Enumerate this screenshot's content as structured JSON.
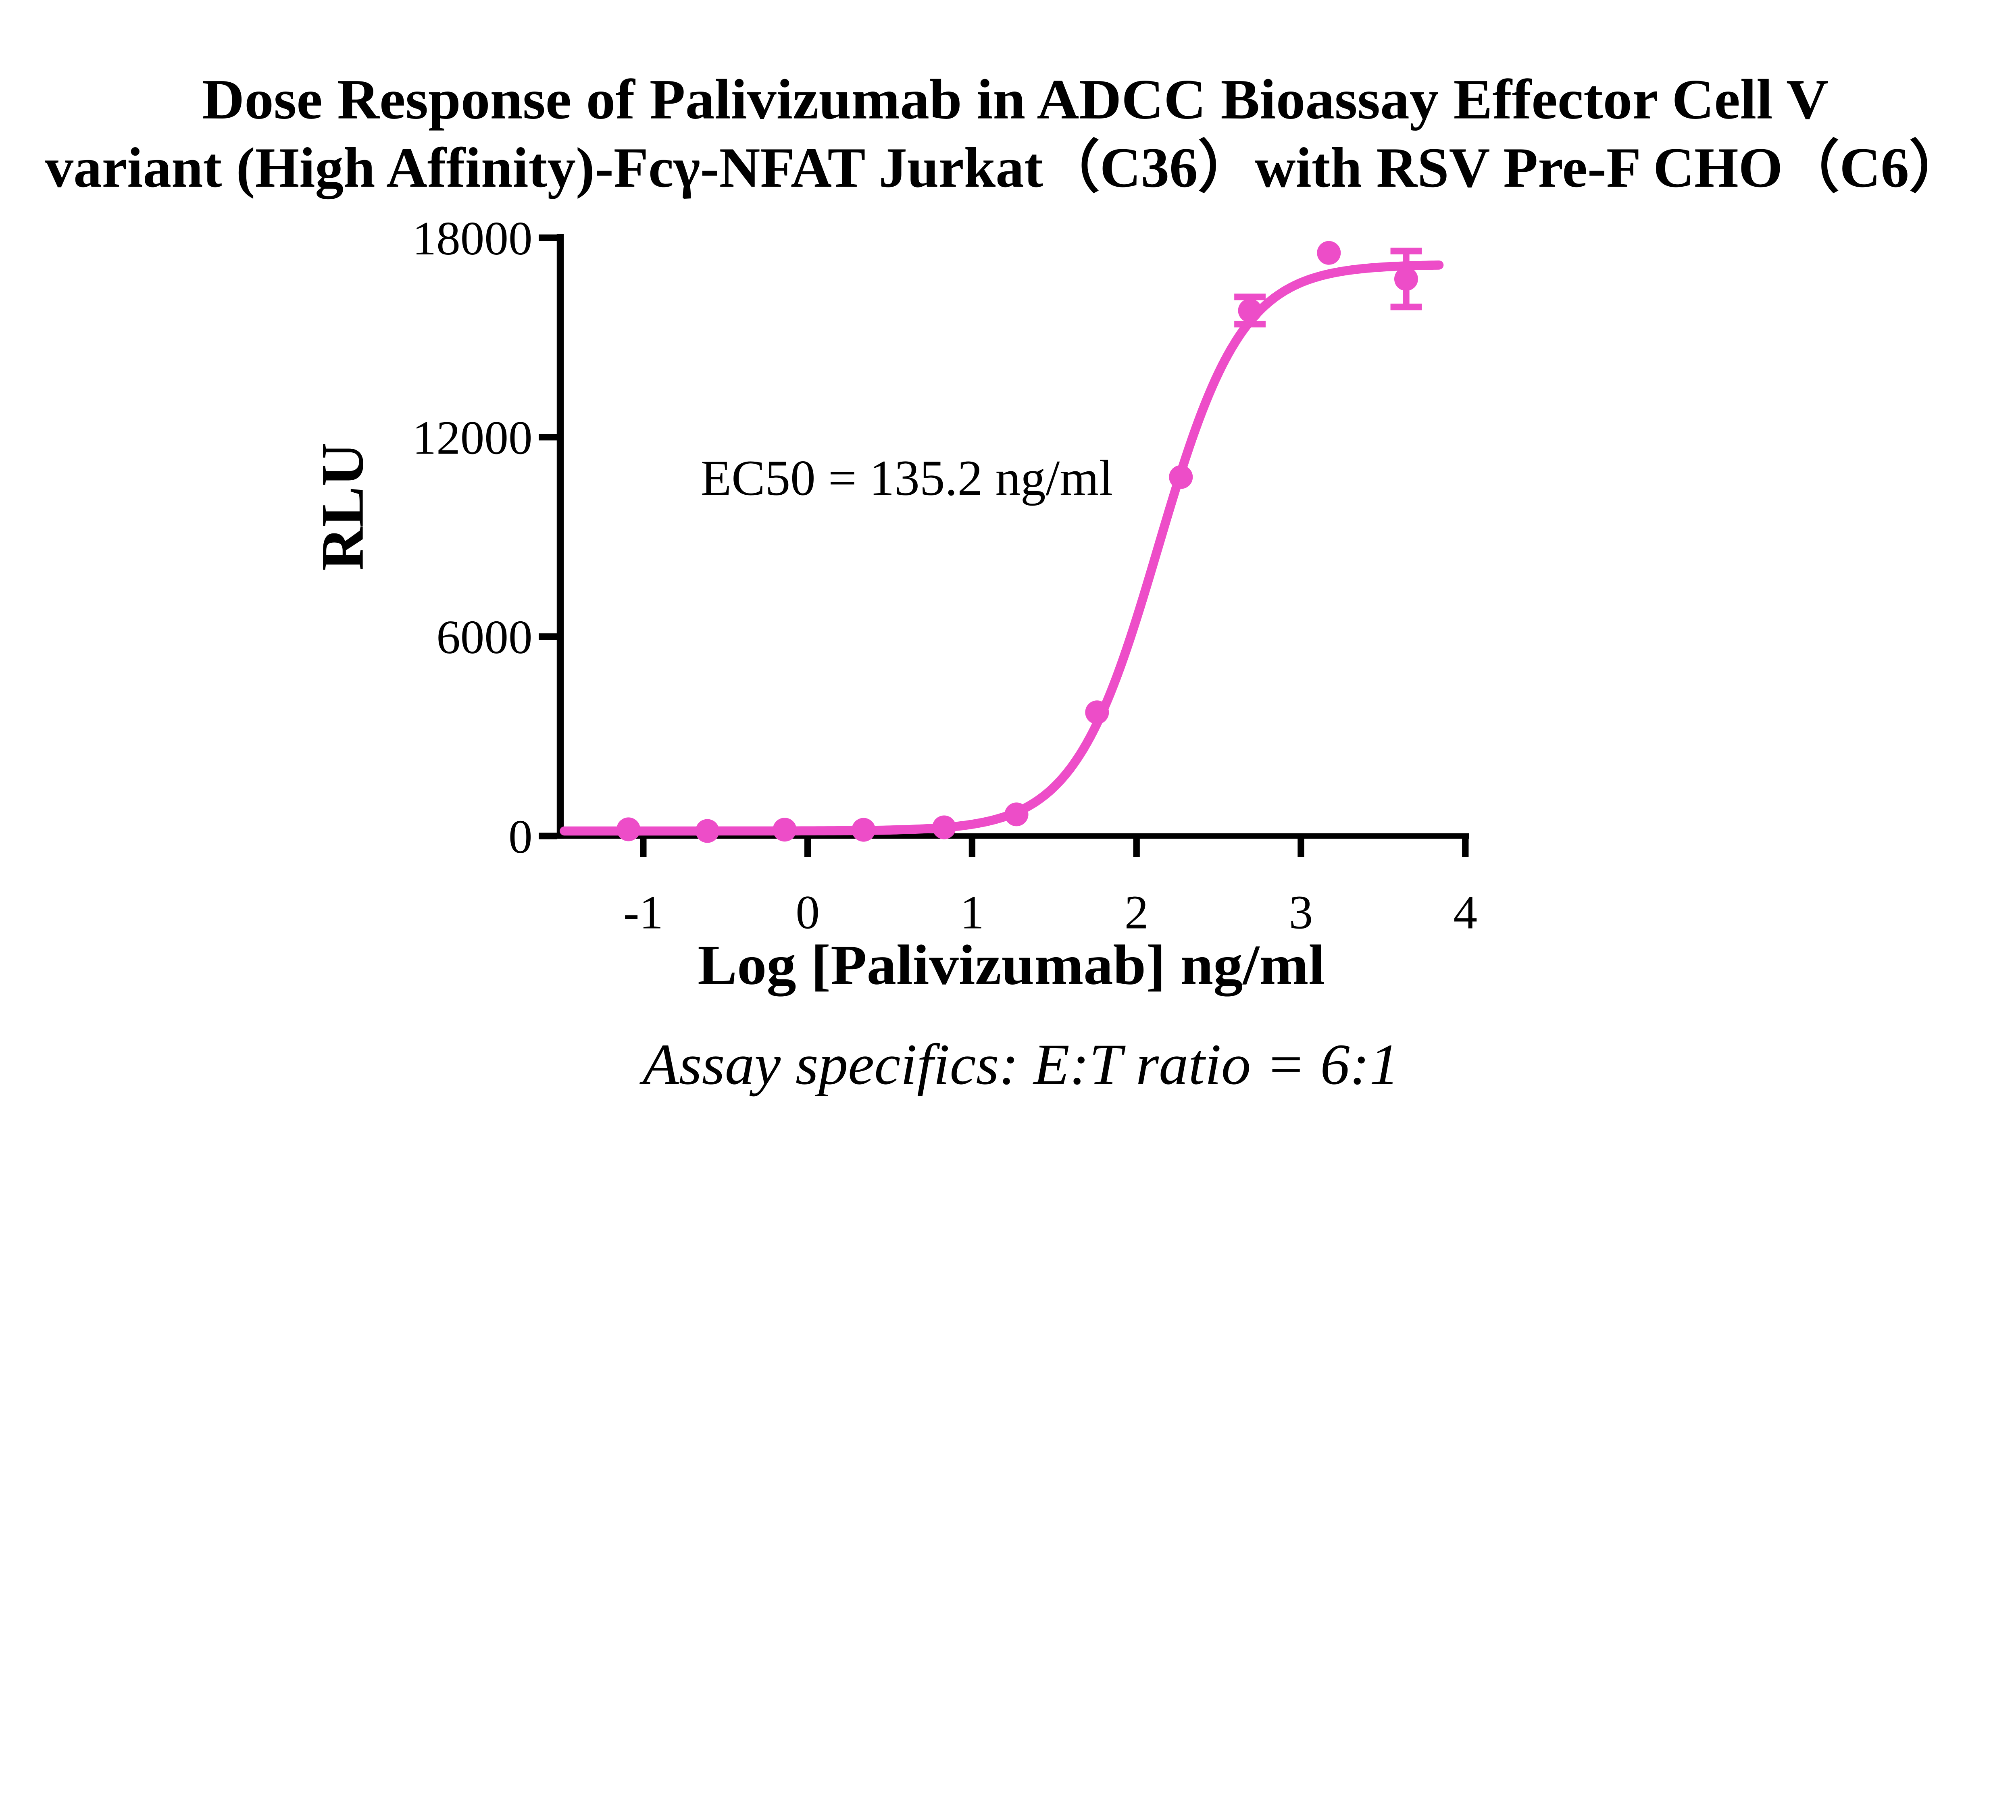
{
  "title": {
    "line1": "Dose Response of Palivizumab in ADCC Bioassay Effector Cell V",
    "line2": "variant (High Affinity)-Fcγ-NFAT Jurkat（C36）with RSV Pre-F CHO（C6）"
  },
  "chart_data": {
    "type": "scatter",
    "title": "Dose Response of Palivizumab in ADCC Bioassay Effector Cell V variant (High Affinity)-Fcγ-NFAT Jurkat（C36）with RSV Pre-F CHO（C6）",
    "xlabel": "Log [Palivizumab] ng/ml",
    "ylabel": "RLU",
    "annotation": "EC50 = 135.2 ng/ml",
    "xlim": [
      -1.5,
      4.1
    ],
    "ylim": [
      0,
      18000
    ],
    "x_ticks": [
      -1,
      0,
      1,
      2,
      3,
      4
    ],
    "y_ticks": [
      0,
      6000,
      12000,
      18000
    ],
    "grid": false,
    "legend_position": "none",
    "colors": {
      "series": "#ED4DC8",
      "axis": "#000000"
    },
    "series": [
      {
        "name": "Palivizumab",
        "color": "#ED4DC8",
        "marker": "circle",
        "points": [
          {
            "x": -1.09,
            "y": 200
          },
          {
            "x": -0.61,
            "y": 150
          },
          {
            "x": -0.14,
            "y": 190
          },
          {
            "x": 0.34,
            "y": 185
          },
          {
            "x": 0.83,
            "y": 260
          },
          {
            "x": 1.27,
            "y": 650
          },
          {
            "x": 1.76,
            "y": 3720
          },
          {
            "x": 2.27,
            "y": 10800
          },
          {
            "x": 2.69,
            "y": 15810,
            "err": 410
          },
          {
            "x": 3.17,
            "y": 17545
          },
          {
            "x": 3.64,
            "y": 16760,
            "err": 840
          }
        ],
        "fit": {
          "model": "4PL sigmoid",
          "bottom": 150,
          "top": 17200,
          "logEC50": 2.131,
          "hillslope": 1.7,
          "ec50_ng_ml": 135.2
        }
      }
    ]
  },
  "footer": {
    "note": "Assay specifics: E:T ratio = 6:1"
  }
}
